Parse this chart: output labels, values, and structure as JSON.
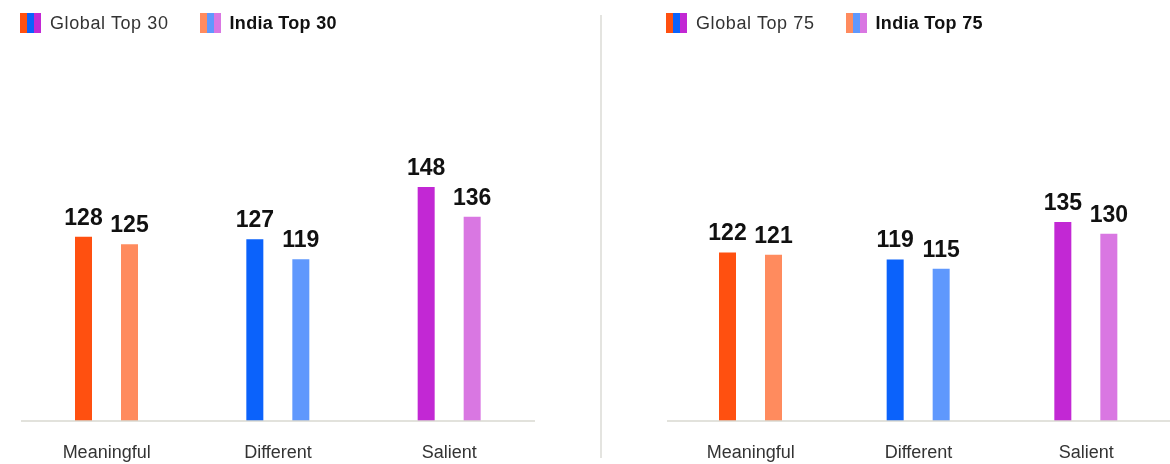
{
  "chart_data": [
    {
      "type": "bar",
      "categories": [
        "Meaningful",
        "Different",
        "Salient"
      ],
      "series": [
        {
          "name": "Global Top 30",
          "colors": [
            "#ff5010",
            "#0b62fb",
            "#c228d4"
          ],
          "values": [
            128,
            127,
            148
          ]
        },
        {
          "name": "India Top 30",
          "colors": [
            "#ff8b5e",
            "#5f98fd",
            "#d977e2"
          ],
          "values": [
            125,
            119,
            136
          ]
        }
      ],
      "ylim": [
        54,
        148
      ],
      "data_labels": true,
      "legend": "top left",
      "tick_labels": "x"
    },
    {
      "type": "bar",
      "categories": [
        "Meaningful",
        "Different",
        "Salient"
      ],
      "series": [
        {
          "name": "Global Top 75",
          "colors": [
            "#ff5010",
            "#0b62fb",
            "#c228d4"
          ],
          "values": [
            122,
            119,
            135
          ]
        },
        {
          "name": "India Top 75",
          "colors": [
            "#ff8b5e",
            "#5f98fd",
            "#d977e2"
          ],
          "values": [
            121,
            115,
            130
          ]
        }
      ],
      "ylim": [
        50,
        135
      ],
      "data_labels": true,
      "legend": "top left",
      "tick_labels": "x"
    }
  ]
}
